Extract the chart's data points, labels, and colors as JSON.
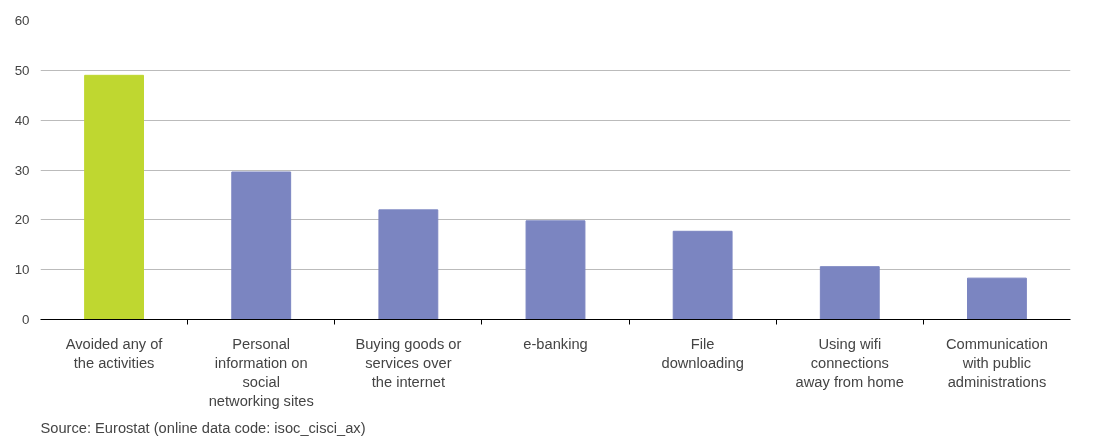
{
  "chart_data": {
    "type": "bar",
    "categories": [
      "Avoided any of\nthe activities",
      "Personal\ninformation on\nsocial\nnetworking sites",
      "Buying goods or\nservices over\nthe internet",
      "e-banking",
      "File\ndownloading",
      "Using wifi\nconnections\naway from home",
      "Communication\nwith public\nadministrations"
    ],
    "values": [
      49,
      29.6,
      22,
      19.8,
      17.7,
      10.6,
      8.3
    ],
    "colors": [
      "#bfd730",
      "#7b85c1",
      "#7b85c1",
      "#7b85c1",
      "#7b85c1",
      "#7b85c1",
      "#7b85c1"
    ],
    "ylim": [
      0,
      60
    ],
    "yticks": [
      0,
      10,
      20,
      30,
      40,
      50,
      60
    ],
    "grid": "y",
    "annotations": [
      "Source: Eurostat (online data code: isoc_cisci_ax)"
    ]
  }
}
